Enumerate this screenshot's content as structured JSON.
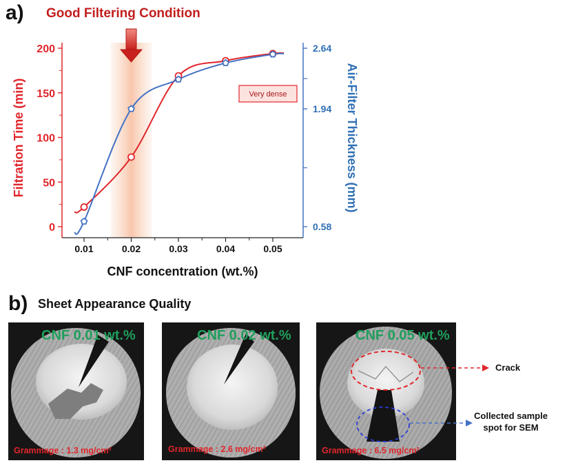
{
  "panel_a_label": "a)",
  "panel_b_label": "b)",
  "good_condition": "Good Filtering Condition",
  "sheet_title": "Sheet Appearance Quality",
  "chart_data": {
    "type": "line",
    "xlabel": "CNF concentration (wt.%)",
    "ylabel_left": "Filtration Time (min)",
    "ylabel_right": "Air-Filter Thickness (mm)",
    "x": [
      0.01,
      0.02,
      0.03,
      0.04,
      0.05
    ],
    "x_ticks": [
      "0.01",
      "0.02",
      "0.03",
      "0.04",
      "0.05"
    ],
    "left_ticks": [
      "0",
      "50",
      "100",
      "150",
      "200"
    ],
    "right_ticks": [
      "0.58",
      "1.94",
      "2.64"
    ],
    "left_ylim": [
      0,
      200
    ],
    "right_ylim": [
      0.58,
      2.64
    ],
    "annotation": "Very dense",
    "highlight_x": 0.02,
    "series": [
      {
        "name": "Filtration Time (min)",
        "axis": "left",
        "color": "#e0262b",
        "values": [
          22,
          78,
          169,
          186,
          194
        ]
      },
      {
        "name": "Air-Filter Thickness (mm)",
        "axis": "right",
        "color": "#4472c4",
        "values": [
          0.64,
          1.94,
          2.28,
          2.47,
          2.57
        ]
      }
    ]
  },
  "sheets": [
    {
      "cnf": "CNF 0.01 wt.%",
      "grammage": "Grammage : 1.3 mg/cm²"
    },
    {
      "cnf": "CNF 0.02 wt.%",
      "grammage": "Grammage : 2.6 mg/cm²"
    },
    {
      "cnf": "CNF 0.05 wt.%",
      "grammage": "Grammage : 6.5 mg/cm²"
    }
  ],
  "callouts": {
    "crack": "Crack",
    "sample_line1": "Collected sample",
    "sample_line2": "spot for SEM"
  },
  "colors": {
    "red": "#e0262b",
    "blue": "#4472c4",
    "condition": "#c21e1e",
    "cnf_green": "#1f9e5c"
  }
}
